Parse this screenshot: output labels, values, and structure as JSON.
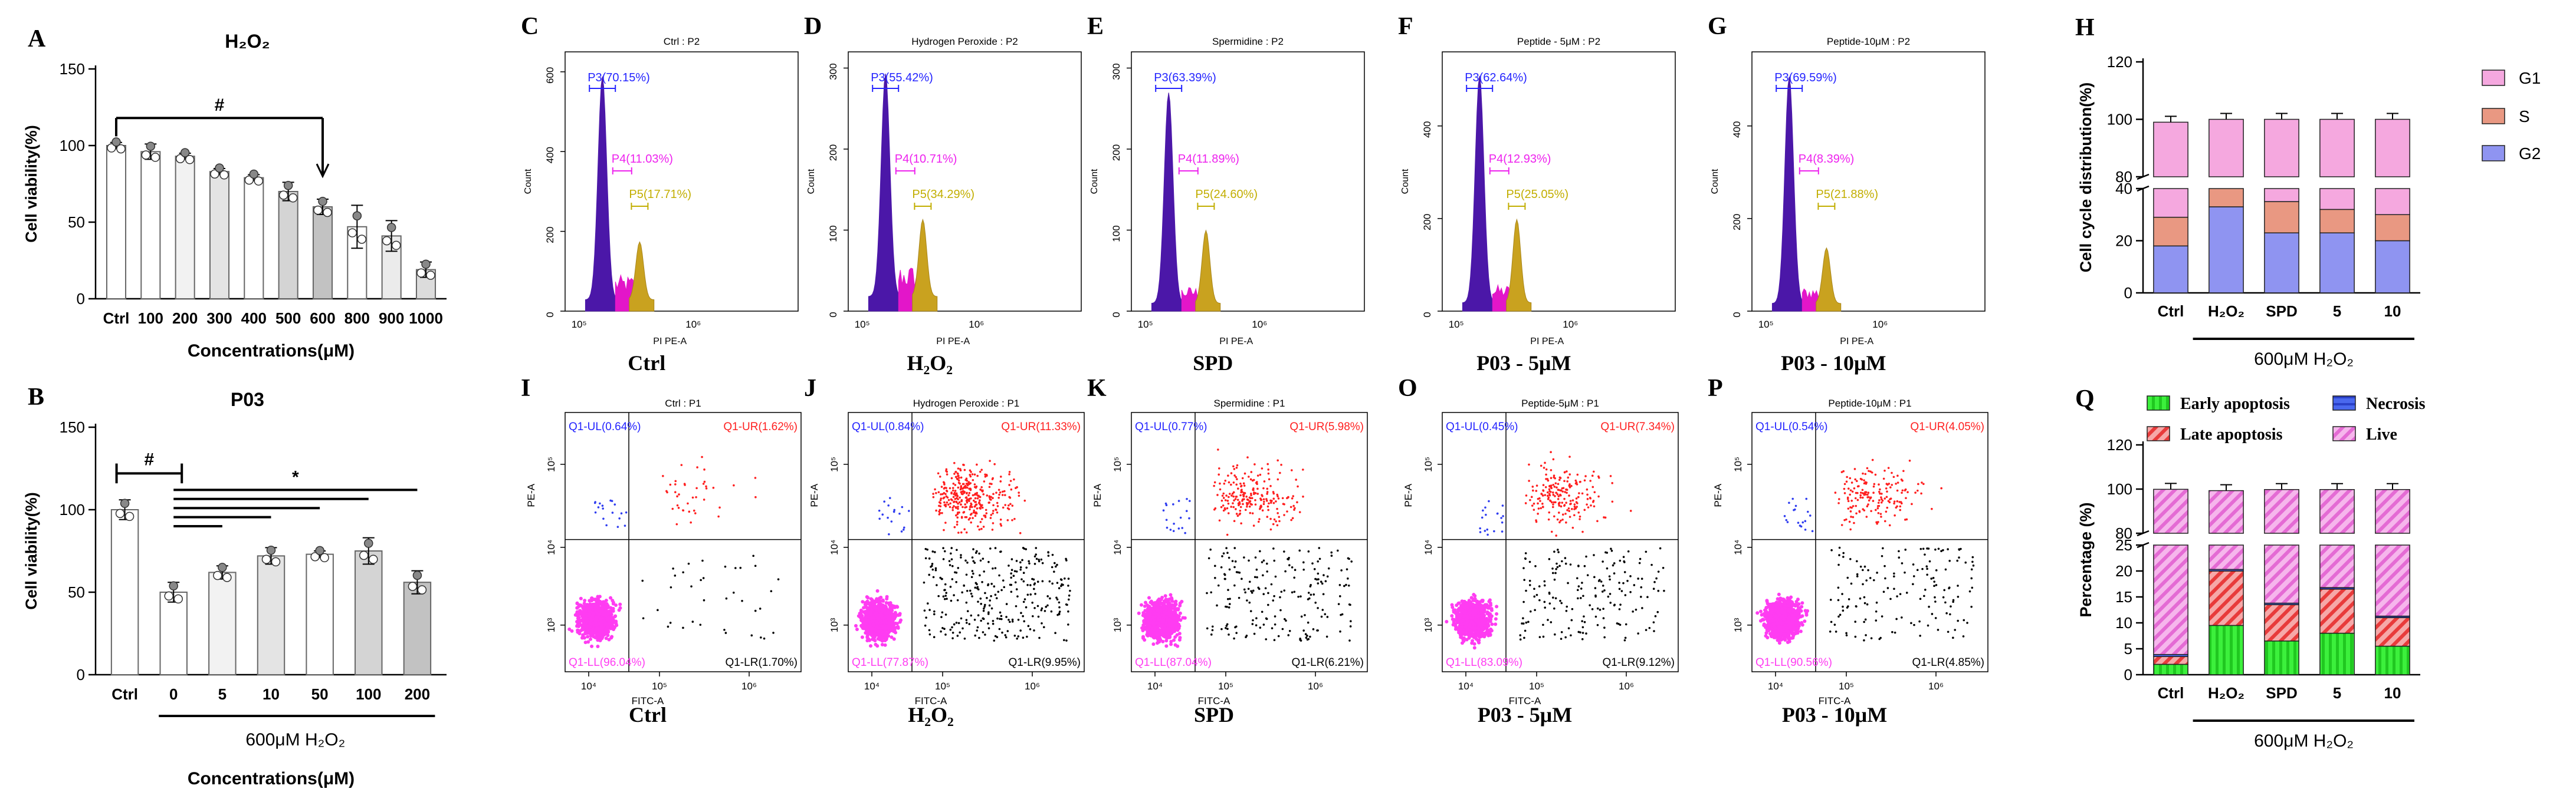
{
  "colors": {
    "flow_main": "#4b17a8",
    "flow_magenta": "#e316c9",
    "flow_gold": "#c9a21f",
    "g1": "#f5a8df",
    "s": "#e99882",
    "g2": "#8f94f1",
    "early": "#33ee33",
    "late": "#f36c6c",
    "necrosis": "#3a5ae6",
    "live": "#f08ae0",
    "scatter_ll": "#ff3cf2",
    "scatter_ur": "#ff1f1f",
    "scatter_ul": "#2f3df0",
    "scatter_lr": "#000000",
    "gate_blue": "#2424ff",
    "gate_magenta": "#ee22ee",
    "gate_gold": "#c2ae00"
  },
  "chart_data": [
    {
      "id": "A",
      "type": "bar",
      "letter": "A",
      "title": "H₂O₂",
      "categories": [
        "Ctrl",
        "100",
        "200",
        "300",
        "400",
        "500",
        "600",
        "800",
        "900",
        "1000"
      ],
      "values": [
        100,
        96,
        93,
        83,
        79,
        70,
        60,
        47,
        41,
        19
      ],
      "errors": [
        2,
        5,
        2,
        2,
        2,
        6,
        5,
        14,
        10,
        5
      ],
      "ylim": [
        0,
        150
      ],
      "yticks": [
        "0",
        "50",
        "100",
        "150"
      ],
      "ylabel": "Cell viability(%)",
      "xlabel": "Concentrations(μM)",
      "annotation": "#"
    },
    {
      "id": "B",
      "type": "bar",
      "letter": "B",
      "title": "P03",
      "categories": [
        "Ctrl",
        "0",
        "5",
        "10",
        "50",
        "100",
        "200"
      ],
      "values": [
        100,
        50,
        62,
        72,
        73,
        75,
        56
      ],
      "errors": [
        6,
        6,
        4,
        5,
        2,
        8,
        7
      ],
      "ylim": [
        0,
        150
      ],
      "yticks": [
        "0",
        "50",
        "100",
        "150"
      ],
      "ylabel": "Cell viability(%)",
      "xlabel": "Concentrations(μM)",
      "group_label": "600μM H₂O₂",
      "annotations": [
        "#",
        "*"
      ]
    },
    {
      "id": "C",
      "type": "area",
      "letter": "C",
      "header": "Ctrl : P2",
      "caption": "Ctrl",
      "yticks": [
        "0",
        "200",
        "400",
        "600"
      ],
      "ylim": [
        0,
        650
      ],
      "peak": 560,
      "mid": 95,
      "g2": 145,
      "ylabel": "Count",
      "xlabel": "PI PE-A",
      "xticks": [
        "10⁵",
        "10⁶"
      ],
      "gates": {
        "p3": "P3(70.15%)",
        "p4": "P4(11.03%)",
        "p5": "P5(17.71%)"
      }
    },
    {
      "id": "D",
      "type": "area",
      "letter": "D",
      "header": "Hydrogen Peroxide : P2",
      "caption": "H₂O₂",
      "yticks": [
        "0",
        "100",
        "200",
        "300"
      ],
      "ylim": [
        0,
        320
      ],
      "peak": 275,
      "mid": 60,
      "g2": 95,
      "ylabel": "Count",
      "xlabel": "PI PE-A",
      "xticks": [
        "10⁵",
        "10⁶"
      ],
      "gates": {
        "p3": "P3(55.42%)",
        "p4": "P4(10.71%)",
        "p5": "P5(34.29%)"
      }
    },
    {
      "id": "E",
      "type": "area",
      "letter": "E",
      "header": "Spermidine : P2",
      "caption": "SPD",
      "yticks": [
        "0",
        "100",
        "200",
        "300"
      ],
      "ylim": [
        0,
        320
      ],
      "peak": 260,
      "mid": 32,
      "g2": 90,
      "ylabel": "Count",
      "xlabel": "PI PE-A",
      "xticks": [
        "10⁵",
        "10⁶"
      ],
      "gates": {
        "p3": "P3(63.39%)",
        "p4": "P4(11.89%)",
        "p5": "P5(24.60%)"
      }
    },
    {
      "id": "F",
      "type": "area",
      "letter": "F",
      "header": "Peptide - 5μM : P2",
      "caption": "P03 - 5μM",
      "yticks": [
        "0",
        "200",
        "400"
      ],
      "ylim": [
        0,
        560
      ],
      "peak": 490,
      "mid": 60,
      "g2": 180,
      "ylabel": "Count",
      "xlabel": "PI PE-A",
      "xticks": [
        "10⁵",
        "10⁶"
      ],
      "gates": {
        "p3": "P3(62.64%)",
        "p4": "P4(12.93%)",
        "p5": "P5(25.05%)"
      }
    },
    {
      "id": "G",
      "type": "area",
      "letter": "G",
      "header": "Peptide-10μM : P2",
      "caption": "P03 - 10μM",
      "yticks": [
        "0",
        "200",
        "400"
      ],
      "ylim": [
        0,
        560
      ],
      "peak": 490,
      "mid": 55,
      "g2": 120,
      "ylabel": "Count",
      "xlabel": "PI PE-A",
      "xticks": [
        "10⁵",
        "10⁶"
      ],
      "gates": {
        "p3": "P3(69.59%)",
        "p4": "P4(8.39%)",
        "p5": "P5(21.88%)"
      }
    },
    {
      "id": "H",
      "type": "bar",
      "letter": "H",
      "categories": [
        "Ctrl",
        "H₂O₂",
        "SPD",
        "5",
        "10"
      ],
      "series": [
        {
          "name": "G2",
          "values": [
            18,
            33,
            23,
            23,
            20
          ]
        },
        {
          "name": "S",
          "values": [
            11,
            12,
            12,
            9,
            10
          ]
        },
        {
          "name": "G1",
          "values": [
            70,
            55,
            65,
            68,
            70
          ]
        }
      ],
      "ylabel": "Cell cycle distribution(%)",
      "yticks_low": [
        "0",
        "20",
        "40"
      ],
      "yticks_high": [
        "80",
        "100",
        "120"
      ],
      "legend": [
        "G1",
        "S",
        "G2"
      ],
      "group_label": "600μM H₂O₂"
    },
    {
      "id": "I",
      "type": "scatter",
      "letter": "I",
      "header": "Ctrl : P1",
      "caption": "Ctrl",
      "quadrants": {
        "ul": "Q1-UL(0.64%)",
        "ur": "Q1-UR(1.62%)",
        "ll": "Q1-LL(96.04%)",
        "lr": "Q1-LR(1.70%)"
      },
      "ylabel": "PE-A",
      "xlabel": "FITC-A",
      "xticks": [
        "10⁴",
        "10⁵",
        "10⁶"
      ],
      "yticks": [
        "10³",
        "10⁴",
        "10⁵"
      ]
    },
    {
      "id": "J",
      "type": "scatter",
      "letter": "J",
      "header": "Hydrogen Peroxide : P1",
      "caption": "H₂O₂",
      "quadrants": {
        "ul": "Q1-UL(0.84%)",
        "ur": "Q1-UR(11.33%)",
        "ll": "Q1-LL(77.87%)",
        "lr": "Q1-LR(9.95%)"
      },
      "ylabel": "PE-A",
      "xlabel": "FITC-A",
      "xticks": [
        "10⁴",
        "10⁵",
        "10⁶"
      ],
      "yticks": [
        "10³",
        "10⁴",
        "10⁵"
      ]
    },
    {
      "id": "K",
      "type": "scatter",
      "letter": "K",
      "header": "Spermidine : P1",
      "caption": "SPD",
      "quadrants": {
        "ul": "Q1-UL(0.77%)",
        "ur": "Q1-UR(5.98%)",
        "ll": "Q1-LL(87.04%)",
        "lr": "Q1-LR(6.21%)"
      },
      "ylabel": "PE-A",
      "xlabel": "FITC-A",
      "xticks": [
        "10⁴",
        "10⁵",
        "10⁶"
      ],
      "yticks": [
        "10³",
        "10⁴",
        "10⁵"
      ]
    },
    {
      "id": "O",
      "type": "scatter",
      "letter": "O",
      "header": "Peptide-5μM : P1",
      "caption": "P03 - 5μM",
      "quadrants": {
        "ul": "Q1-UL(0.45%)",
        "ur": "Q1-UR(7.34%)",
        "ll": "Q1-LL(83.09%)",
        "lr": "Q1-LR(9.12%)"
      },
      "ylabel": "PE-A",
      "xlabel": "FITC-A",
      "xticks": [
        "10⁴",
        "10⁵",
        "10⁶"
      ],
      "yticks": [
        "10³",
        "10⁴",
        "10⁵"
      ]
    },
    {
      "id": "P",
      "type": "scatter",
      "letter": "P",
      "header": "Peptide-10μM : P1",
      "caption": "P03 - 10μM",
      "quadrants": {
        "ul": "Q1-UL(0.54%)",
        "ur": "Q1-UR(4.05%)",
        "ll": "Q1-LL(90.56%)",
        "lr": "Q1-LR(4.85%)"
      },
      "ylabel": "PE-A",
      "xlabel": "FITC-A",
      "xticks": [
        "10⁴",
        "10⁵",
        "10⁶"
      ],
      "yticks": [
        "10³",
        "10⁴",
        "10⁵"
      ]
    },
    {
      "id": "Q",
      "type": "bar",
      "letter": "Q",
      "categories": [
        "Ctrl",
        "H₂O₂",
        "SPD",
        "5",
        "10"
      ],
      "series": [
        {
          "name": "Early apoptosis",
          "values": [
            2,
            9.5,
            6.5,
            8,
            5.5
          ]
        },
        {
          "name": "Late apoptosis",
          "values": [
            1.5,
            10.5,
            7,
            8.5,
            5.5
          ]
        },
        {
          "name": "Necrosis",
          "values": [
            0.4,
            0.3,
            0.3,
            0.3,
            0.3
          ]
        },
        {
          "name": "Live",
          "values": [
            96,
            79,
            86,
            83,
            88.5
          ]
        }
      ],
      "ylabel": "Percentage (%)",
      "yticks_low": [
        "0",
        "5",
        "10",
        "15",
        "20",
        "25"
      ],
      "yticks_high": [
        "80",
        "100",
        "120"
      ],
      "legend": [
        "Early apoptosis",
        "Necrosis",
        "Late apoptosis",
        "Live"
      ],
      "group_label": "600μM H₂O₂"
    }
  ]
}
